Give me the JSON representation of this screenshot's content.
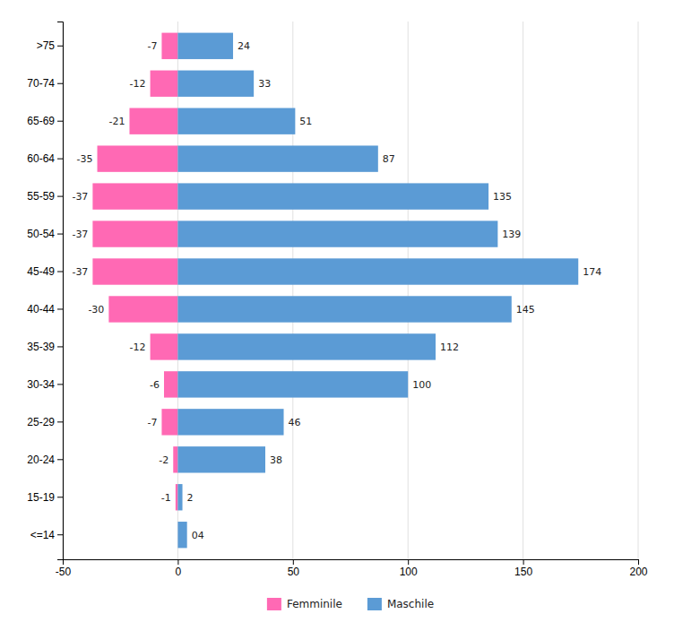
{
  "chart_data": {
    "type": "bar",
    "orientation": "horizontal",
    "categories": [
      "<=14",
      "15-19",
      "20-24",
      "25-29",
      "30-34",
      "35-39",
      "40-44",
      "45-49",
      "50-54",
      "55-59",
      "60-64",
      "65-69",
      "70-74",
      ">75"
    ],
    "series": [
      {
        "name": "Femminile",
        "color": "#FF69B4",
        "values": [
          0,
          -1,
          -2,
          -7,
          -6,
          -12,
          -30,
          -37,
          -37,
          -37,
          -35,
          -21,
          -12,
          -7
        ],
        "value_labels": [
          null,
          "-1",
          "-2",
          "-7",
          "-6",
          "-12",
          "-30",
          "-37",
          "-37",
          "-37",
          "-35",
          "-21",
          "-12",
          "-7"
        ]
      },
      {
        "name": "Maschile",
        "color": "#5B9BD5",
        "values": [
          4,
          2,
          38,
          46,
          100,
          112,
          145,
          174,
          139,
          135,
          87,
          51,
          33,
          24
        ],
        "value_labels": [
          "04",
          "2",
          "38",
          "46",
          "100",
          "112",
          "145",
          "174",
          "139",
          "135",
          "87",
          "51",
          "33",
          "24"
        ]
      }
    ],
    "xlim": [
      -50,
      200
    ],
    "xticks": [
      -50,
      0,
      50,
      100,
      150,
      200
    ],
    "grid": true,
    "legend": "bottom",
    "data_labels": true
  }
}
